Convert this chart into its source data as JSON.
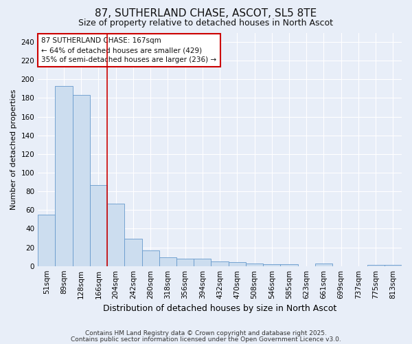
{
  "title1": "87, SUTHERLAND CHASE, ASCOT, SL5 8TE",
  "title2": "Size of property relative to detached houses in North Ascot",
  "xlabel": "Distribution of detached houses by size in North Ascot",
  "ylabel": "Number of detached properties",
  "categories": [
    "51sqm",
    "89sqm",
    "128sqm",
    "166sqm",
    "204sqm",
    "242sqm",
    "280sqm",
    "318sqm",
    "356sqm",
    "394sqm",
    "432sqm",
    "470sqm",
    "508sqm",
    "546sqm",
    "585sqm",
    "623sqm",
    "661sqm",
    "699sqm",
    "737sqm",
    "775sqm",
    "813sqm"
  ],
  "values": [
    55,
    193,
    183,
    87,
    67,
    29,
    17,
    9,
    8,
    8,
    5,
    4,
    3,
    2,
    2,
    0,
    3,
    0,
    0,
    1,
    1
  ],
  "bar_color": "#ccddef",
  "bar_edge_color": "#6699cc",
  "background_color": "#e8eef8",
  "grid_color": "#ffffff",
  "red_line_x": 3.5,
  "annotation_line1": "87 SUTHERLAND CHASE: 167sqm",
  "annotation_line2": "← 64% of detached houses are smaller (429)",
  "annotation_line3": "35% of semi-detached houses are larger (236) →",
  "annotation_box_color": "#ffffff",
  "annotation_box_edge": "#cc0000",
  "ylim": [
    0,
    250
  ],
  "yticks": [
    0,
    20,
    40,
    60,
    80,
    100,
    120,
    140,
    160,
    180,
    200,
    220,
    240
  ],
  "footer1": "Contains HM Land Registry data © Crown copyright and database right 2025.",
  "footer2": "Contains public sector information licensed under the Open Government Licence v3.0.",
  "title1_fontsize": 11,
  "title2_fontsize": 9,
  "xlabel_fontsize": 9,
  "ylabel_fontsize": 8,
  "tick_fontsize": 7.5,
  "footer_fontsize": 6.5
}
